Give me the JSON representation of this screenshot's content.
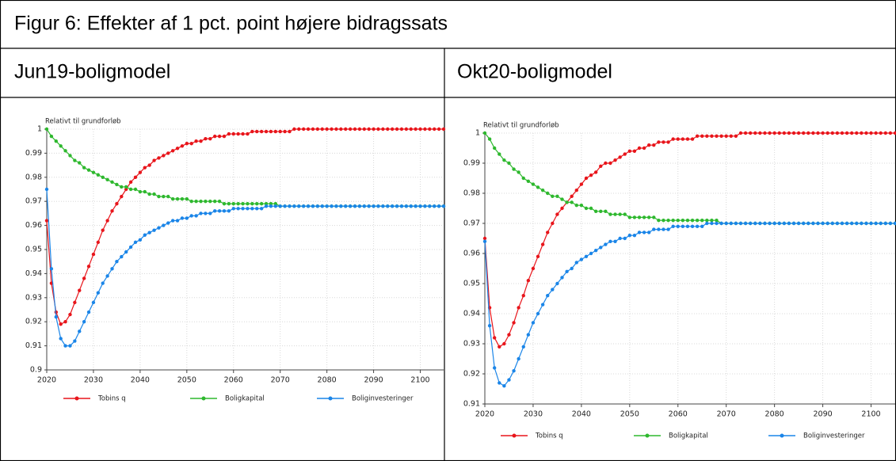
{
  "title": "Figur 6: Effekter af 1 pct. point højere bidragssats",
  "columns": [
    "Jun19-boligmodel",
    "Okt20-boligmodel"
  ],
  "chart_data": [
    {
      "type": "line",
      "y_label": "Relativt til grundforløb",
      "grid": true,
      "xlim": [
        2020,
        2105
      ],
      "xticks": [
        2020,
        2030,
        2040,
        2050,
        2060,
        2070,
        2080,
        2090,
        2100
      ],
      "ylim": [
        0.9,
        1
      ],
      "yticks": [
        0.9,
        0.91,
        0.92,
        0.93,
        0.94,
        0.95,
        0.96,
        0.97,
        0.98,
        0.99,
        1
      ],
      "x": [
        2020,
        2021,
        2022,
        2023,
        2024,
        2025,
        2026,
        2027,
        2028,
        2029,
        2030,
        2031,
        2032,
        2033,
        2034,
        2035,
        2036,
        2037,
        2038,
        2039,
        2040,
        2041,
        2042,
        2043,
        2044,
        2045,
        2046,
        2047,
        2048,
        2049,
        2050,
        2051,
        2052,
        2053,
        2054,
        2055,
        2056,
        2057,
        2058,
        2059,
        2060,
        2061,
        2062,
        2063,
        2064,
        2065,
        2066,
        2067,
        2068,
        2069,
        2070,
        2071,
        2072,
        2073,
        2074,
        2075,
        2076,
        2077,
        2078,
        2079,
        2080,
        2081,
        2082,
        2083,
        2084,
        2085,
        2086,
        2087,
        2088,
        2089,
        2090,
        2091,
        2092,
        2093,
        2094,
        2095,
        2096,
        2097,
        2098,
        2099,
        2100,
        2101,
        2102,
        2103,
        2104,
        2105
      ],
      "series": [
        {
          "name": "Tobins q",
          "color": "#e8151b",
          "values": [
            0.962,
            0.936,
            0.924,
            0.919,
            0.92,
            0.923,
            0.928,
            0.933,
            0.938,
            0.943,
            0.948,
            0.953,
            0.958,
            0.962,
            0.966,
            0.969,
            0.972,
            0.975,
            0.978,
            0.98,
            0.982,
            0.984,
            0.985,
            0.987,
            0.988,
            0.989,
            0.99,
            0.991,
            0.992,
            0.993,
            0.994,
            0.994,
            0.995,
            0.995,
            0.996,
            0.996,
            0.997,
            0.997,
            0.997,
            0.998,
            0.998,
            0.998,
            0.998,
            0.998,
            0.999,
            0.999,
            0.999,
            0.999,
            0.999,
            0.999,
            0.999,
            0.999,
            0.999,
            1,
            1,
            1,
            1,
            1,
            1,
            1,
            1,
            1,
            1,
            1,
            1,
            1,
            1,
            1,
            1,
            1,
            1,
            1,
            1,
            1,
            1,
            1,
            1,
            1,
            1,
            1,
            1,
            1,
            1,
            1,
            1,
            1
          ]
        },
        {
          "name": "Boligkapital",
          "color": "#2eb82e",
          "values": [
            1,
            0.997,
            0.995,
            0.993,
            0.991,
            0.989,
            0.987,
            0.986,
            0.984,
            0.983,
            0.982,
            0.981,
            0.98,
            0.979,
            0.978,
            0.977,
            0.976,
            0.976,
            0.975,
            0.975,
            0.974,
            0.974,
            0.973,
            0.973,
            0.972,
            0.972,
            0.972,
            0.971,
            0.971,
            0.971,
            0.971,
            0.97,
            0.97,
            0.97,
            0.97,
            0.97,
            0.97,
            0.97,
            0.969,
            0.969,
            0.969,
            0.969,
            0.969,
            0.969,
            0.969,
            0.969,
            0.969,
            0.969,
            0.969,
            0.969,
            0.968,
            0.968,
            0.968,
            0.968,
            0.968,
            0.968,
            0.968,
            0.968,
            0.968,
            0.968,
            0.968,
            0.968,
            0.968,
            0.968,
            0.968,
            0.968,
            0.968,
            0.968,
            0.968,
            0.968,
            0.968,
            0.968,
            0.968,
            0.968,
            0.968,
            0.968,
            0.968,
            0.968,
            0.968,
            0.968,
            0.968,
            0.968,
            0.968,
            0.968,
            0.968,
            0.968
          ]
        },
        {
          "name": "Boliginvesteringer",
          "color": "#1a85e8",
          "values": [
            0.975,
            0.942,
            0.922,
            0.913,
            0.91,
            0.91,
            0.912,
            0.916,
            0.92,
            0.924,
            0.928,
            0.932,
            0.936,
            0.939,
            0.942,
            0.945,
            0.947,
            0.949,
            0.951,
            0.953,
            0.954,
            0.956,
            0.957,
            0.958,
            0.959,
            0.96,
            0.961,
            0.962,
            0.962,
            0.963,
            0.963,
            0.964,
            0.964,
            0.965,
            0.965,
            0.965,
            0.966,
            0.966,
            0.966,
            0.966,
            0.967,
            0.967,
            0.967,
            0.967,
            0.967,
            0.967,
            0.967,
            0.968,
            0.968,
            0.968,
            0.968,
            0.968,
            0.968,
            0.968,
            0.968,
            0.968,
            0.968,
            0.968,
            0.968,
            0.968,
            0.968,
            0.968,
            0.968,
            0.968,
            0.968,
            0.968,
            0.968,
            0.968,
            0.968,
            0.968,
            0.968,
            0.968,
            0.968,
            0.968,
            0.968,
            0.968,
            0.968,
            0.968,
            0.968,
            0.968,
            0.968,
            0.968,
            0.968,
            0.968,
            0.968,
            0.968
          ]
        }
      ]
    },
    {
      "type": "line",
      "y_label": "Relativt til grundforløb",
      "grid": true,
      "xlim": [
        2020,
        2105
      ],
      "xticks": [
        2020,
        2030,
        2040,
        2050,
        2060,
        2070,
        2080,
        2090,
        2100
      ],
      "ylim": [
        0.91,
        1
      ],
      "yticks": [
        0.91,
        0.92,
        0.93,
        0.94,
        0.95,
        0.96,
        0.97,
        0.98,
        0.99,
        1
      ],
      "x": [
        2020,
        2021,
        2022,
        2023,
        2024,
        2025,
        2026,
        2027,
        2028,
        2029,
        2030,
        2031,
        2032,
        2033,
        2034,
        2035,
        2036,
        2037,
        2038,
        2039,
        2040,
        2041,
        2042,
        2043,
        2044,
        2045,
        2046,
        2047,
        2048,
        2049,
        2050,
        2051,
        2052,
        2053,
        2054,
        2055,
        2056,
        2057,
        2058,
        2059,
        2060,
        2061,
        2062,
        2063,
        2064,
        2065,
        2066,
        2067,
        2068,
        2069,
        2070,
        2071,
        2072,
        2073,
        2074,
        2075,
        2076,
        2077,
        2078,
        2079,
        2080,
        2081,
        2082,
        2083,
        2084,
        2085,
        2086,
        2087,
        2088,
        2089,
        2090,
        2091,
        2092,
        2093,
        2094,
        2095,
        2096,
        2097,
        2098,
        2099,
        2100,
        2101,
        2102,
        2103,
        2104,
        2105
      ],
      "series": [
        {
          "name": "Tobins q",
          "color": "#e8151b",
          "values": [
            0.965,
            0.942,
            0.932,
            0.929,
            0.93,
            0.933,
            0.937,
            0.942,
            0.946,
            0.951,
            0.955,
            0.959,
            0.963,
            0.967,
            0.97,
            0.973,
            0.975,
            0.977,
            0.979,
            0.981,
            0.983,
            0.985,
            0.986,
            0.987,
            0.989,
            0.99,
            0.99,
            0.991,
            0.992,
            0.993,
            0.994,
            0.994,
            0.995,
            0.995,
            0.996,
            0.996,
            0.997,
            0.997,
            0.997,
            0.998,
            0.998,
            0.998,
            0.998,
            0.998,
            0.999,
            0.999,
            0.999,
            0.999,
            0.999,
            0.999,
            0.999,
            0.999,
            0.999,
            1,
            1,
            1,
            1,
            1,
            1,
            1,
            1,
            1,
            1,
            1,
            1,
            1,
            1,
            1,
            1,
            1,
            1,
            1,
            1,
            1,
            1,
            1,
            1,
            1,
            1,
            1,
            1,
            1,
            1,
            1,
            1,
            1
          ]
        },
        {
          "name": "Boligkapital",
          "color": "#2eb82e",
          "values": [
            1,
            0.998,
            0.995,
            0.993,
            0.991,
            0.99,
            0.988,
            0.987,
            0.985,
            0.984,
            0.983,
            0.982,
            0.981,
            0.98,
            0.979,
            0.979,
            0.978,
            0.977,
            0.977,
            0.976,
            0.976,
            0.975,
            0.975,
            0.974,
            0.974,
            0.974,
            0.973,
            0.973,
            0.973,
            0.973,
            0.972,
            0.972,
            0.972,
            0.972,
            0.972,
            0.972,
            0.971,
            0.971,
            0.971,
            0.971,
            0.971,
            0.971,
            0.971,
            0.971,
            0.971,
            0.971,
            0.971,
            0.971,
            0.971,
            0.97,
            0.97,
            0.97,
            0.97,
            0.97,
            0.97,
            0.97,
            0.97,
            0.97,
            0.97,
            0.97,
            0.97,
            0.97,
            0.97,
            0.97,
            0.97,
            0.97,
            0.97,
            0.97,
            0.97,
            0.97,
            0.97,
            0.97,
            0.97,
            0.97,
            0.97,
            0.97,
            0.97,
            0.97,
            0.97,
            0.97,
            0.97,
            0.97,
            0.97,
            0.97,
            0.97,
            0.97
          ]
        },
        {
          "name": "Boliginvesteringer",
          "color": "#1a85e8",
          "values": [
            0.964,
            0.936,
            0.922,
            0.917,
            0.916,
            0.918,
            0.921,
            0.925,
            0.929,
            0.933,
            0.937,
            0.94,
            0.943,
            0.946,
            0.948,
            0.95,
            0.952,
            0.954,
            0.955,
            0.957,
            0.958,
            0.959,
            0.96,
            0.961,
            0.962,
            0.963,
            0.964,
            0.964,
            0.965,
            0.965,
            0.966,
            0.966,
            0.967,
            0.967,
            0.967,
            0.968,
            0.968,
            0.968,
            0.968,
            0.969,
            0.969,
            0.969,
            0.969,
            0.969,
            0.969,
            0.969,
            0.97,
            0.97,
            0.97,
            0.97,
            0.97,
            0.97,
            0.97,
            0.97,
            0.97,
            0.97,
            0.97,
            0.97,
            0.97,
            0.97,
            0.97,
            0.97,
            0.97,
            0.97,
            0.97,
            0.97,
            0.97,
            0.97,
            0.97,
            0.97,
            0.97,
            0.97,
            0.97,
            0.97,
            0.97,
            0.97,
            0.97,
            0.97,
            0.97,
            0.97,
            0.97,
            0.97,
            0.97,
            0.97,
            0.97,
            0.97
          ]
        }
      ]
    }
  ]
}
